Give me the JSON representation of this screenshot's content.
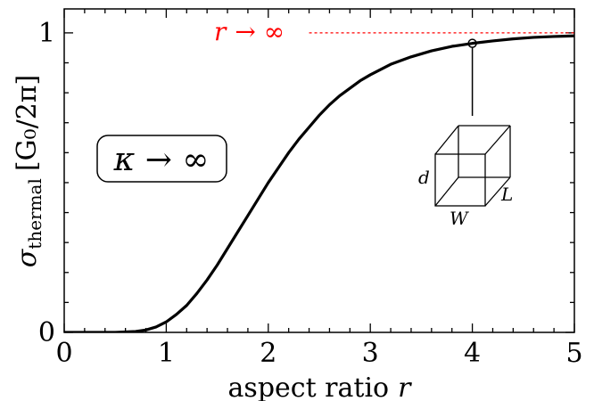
{
  "chart_data": {
    "type": "line",
    "title": "",
    "xlabel": "aspect ratio",
    "xlabel_var": "r",
    "ylabel_symbol": "σ",
    "ylabel_subscript": "thermal",
    "ylabel_unit": "[G₀/2π]",
    "xlim": [
      0,
      5
    ],
    "ylim": [
      0,
      1.08
    ],
    "x_ticks": [
      0,
      1,
      2,
      3,
      4,
      5
    ],
    "x_tick_labels": [
      "0",
      "1",
      "2",
      "3",
      "4",
      "5"
    ],
    "y_ticks": [
      0,
      1
    ],
    "y_tick_labels": [
      "0",
      "1"
    ],
    "grid": false,
    "series": [
      {
        "color": "#000000",
        "x": [
          0,
          0.5,
          0.7,
          0.8,
          0.9,
          1.0,
          1.1,
          1.2,
          1.3,
          1.4,
          1.5,
          1.6,
          1.7,
          1.8,
          1.9,
          2.0,
          2.1,
          2.2,
          2.3,
          2.4,
          2.5,
          2.6,
          2.7,
          2.8,
          2.9,
          3.0,
          3.2,
          3.4,
          3.6,
          3.8,
          4.0,
          4.2,
          4.4,
          4.6,
          4.8,
          5.0
        ],
        "y": [
          0,
          0.0,
          0.003,
          0.008,
          0.018,
          0.035,
          0.06,
          0.09,
          0.13,
          0.175,
          0.225,
          0.28,
          0.335,
          0.39,
          0.445,
          0.5,
          0.55,
          0.6,
          0.645,
          0.685,
          0.725,
          0.76,
          0.79,
          0.815,
          0.84,
          0.86,
          0.895,
          0.92,
          0.94,
          0.955,
          0.965,
          0.973,
          0.98,
          0.985,
          0.988,
          0.99
        ]
      }
    ],
    "asymptote": {
      "y": 1,
      "x_start": 2.4,
      "label_var": "r",
      "label_rest": "→ ∞",
      "color": "#ff0000"
    },
    "marked_point": {
      "x": 4.0,
      "y": 0.965
    },
    "annotation_box": {
      "text": "κ → ∞"
    },
    "inset_labels": {
      "d": "d",
      "W": "W",
      "L": "L"
    }
  }
}
